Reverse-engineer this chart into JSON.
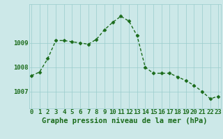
{
  "hours": [
    0,
    1,
    2,
    3,
    4,
    5,
    6,
    7,
    8,
    9,
    10,
    11,
    12,
    13,
    14,
    15,
    16,
    17,
    18,
    19,
    20,
    21,
    22,
    23
  ],
  "pressure": [
    1007.65,
    1007.8,
    1008.35,
    1009.1,
    1009.1,
    1009.05,
    1009.0,
    1008.95,
    1009.15,
    1009.55,
    1009.85,
    1010.1,
    1009.9,
    1009.3,
    1008.0,
    1007.75,
    1007.75,
    1007.75,
    1007.6,
    1007.45,
    1007.25,
    1007.0,
    1006.7,
    1006.8
  ],
  "line_color": "#1a6b1a",
  "marker": "D",
  "marker_size": 2.5,
  "background_color": "#cce8e8",
  "grid_color": "#99cccc",
  "xlabel": "Graphe pression niveau de la mer (hPa)",
  "xlabel_fontsize": 7.5,
  "ylabel_ticks": [
    1007,
    1008,
    1009
  ],
  "ylim": [
    1006.3,
    1010.6
  ],
  "xlim": [
    -0.3,
    23.3
  ],
  "tick_color": "#1a6b1a",
  "tick_fontsize": 6.5,
  "linewidth": 1.0
}
